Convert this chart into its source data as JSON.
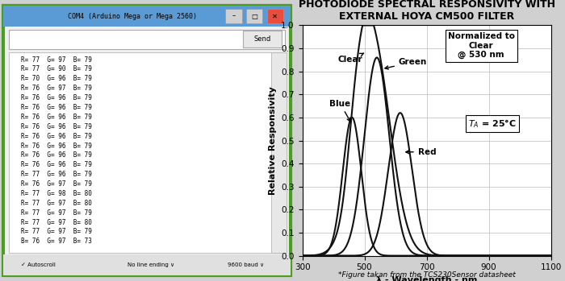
{
  "title": "PHOTODIODE SPECTRAL RESPONSIVITY WITH\nEXTERNAL HOYA CM500 FILTER",
  "xlabel": "λ - Wavelength - nm",
  "ylabel": "Relative Responsivity",
  "xlim": [
    300,
    1100
  ],
  "ylim": [
    0,
    1.0
  ],
  "xticks": [
    300,
    500,
    700,
    900,
    1100
  ],
  "yticks": [
    0,
    0.1,
    0.2,
    0.3,
    0.4,
    0.5,
    0.6,
    0.7,
    0.8,
    0.9,
    1
  ],
  "footnote": "*Figure takan from the TCS230Sensor datasheet",
  "note1": "Normalized to\nClear\n@ 530 nm",
  "note2": "T_A = 25°C",
  "line_color": "#111111",
  "serial_lines": [
    "R= 77  G= 97  B= 79",
    "R= 77  G= 90  B= 79",
    "R= 70  G= 96  B= 79",
    "R= 76  G= 97  B= 79",
    "R= 76  G= 96  B= 79",
    "R= 76  G= 96  B= 79",
    "R= 76  G= 96  B= 79",
    "R= 76  G= 96  B= 79",
    "R= 76  G= 96  B= 79",
    "R= 76  G= 96  B= 79",
    "R= 76  G= 96  B= 79",
    "R= 76  G= 96  B= 79",
    "R= 77  G= 96  B= 79",
    "R= 76  G= 97  B= 79",
    "R= 77  G= 98  B= 80",
    "R= 77  G= 97  B= 80",
    "R= 77  G= 97  B= 79",
    "R= 77  G= 97  B= 80",
    "R= 77  G= 97  B= 79",
    "B= 76  G= 97  B= 73"
  ],
  "win_title": "COM4 (Arduino Mega or Mega 2560)",
  "win_title_bg": "#5b9bd5",
  "win_bg": "#f0f0f0",
  "serial_bg": "white",
  "taskbar_bg": "#d4d0c8",
  "green_bar": "#6ab04c"
}
